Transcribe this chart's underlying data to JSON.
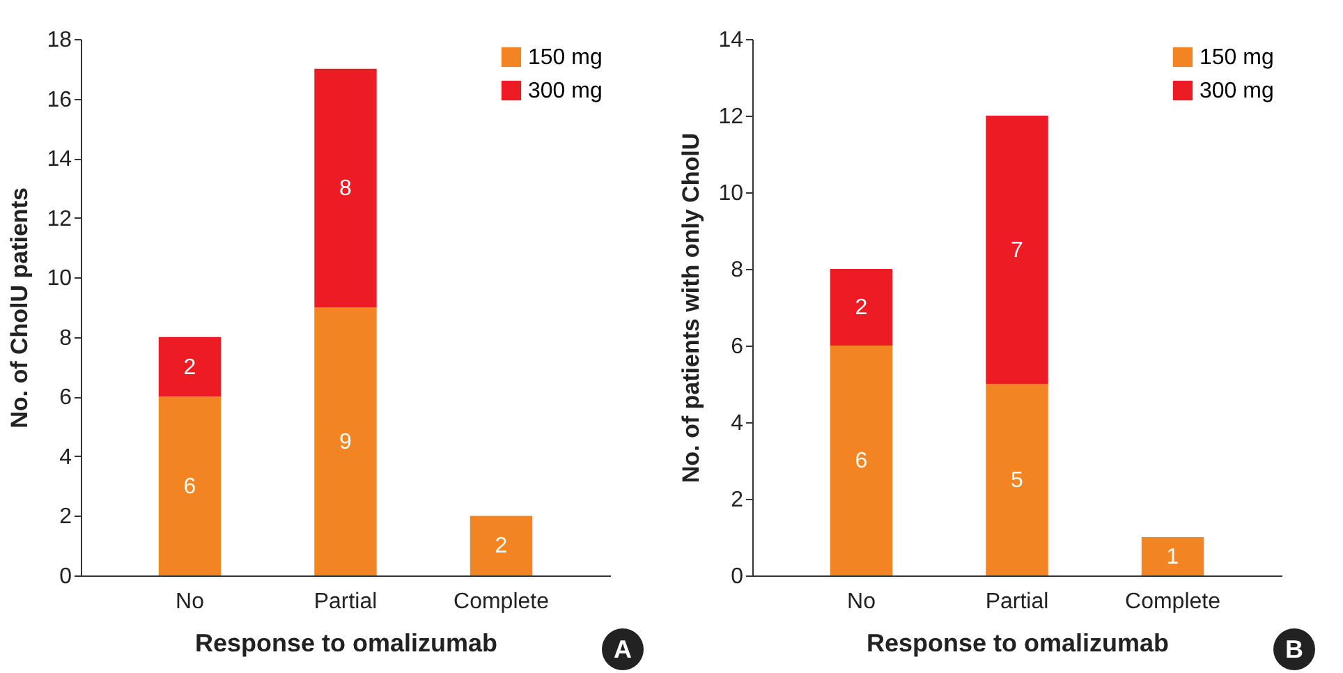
{
  "chart_data": [
    {
      "type": "bar",
      "stacked": true,
      "xlabel": "Response to omalizumab",
      "ylabel": "No. of CholU patients",
      "categories": [
        "No",
        "Partial",
        "Complete"
      ],
      "series": [
        {
          "name": "150 mg",
          "color": "#f28522",
          "values": [
            6,
            9,
            2
          ]
        },
        {
          "name": "300 mg",
          "color": "#ed1c24",
          "values": [
            2,
            8,
            null
          ]
        }
      ],
      "ylim": [
        0,
        18
      ],
      "yticks": [
        0,
        2,
        4,
        6,
        8,
        10,
        12,
        14,
        16,
        18
      ],
      "data_labels": true,
      "legend": "top right",
      "grid": false,
      "annotations": [
        "A"
      ]
    },
    {
      "type": "bar",
      "stacked": true,
      "xlabel": "Response to omalizumab",
      "ylabel": "No. of patients with only CholU",
      "categories": [
        "No",
        "Partial",
        "Complete"
      ],
      "series": [
        {
          "name": "150 mg",
          "color": "#f28522",
          "values": [
            6,
            5,
            1
          ]
        },
        {
          "name": "300 mg",
          "color": "#ed1c24",
          "values": [
            2,
            7,
            null
          ]
        }
      ],
      "ylim": [
        0,
        14
      ],
      "yticks": [
        0,
        2,
        4,
        6,
        8,
        10,
        12,
        14
      ],
      "data_labels": true,
      "legend": "top right",
      "grid": false,
      "annotations": [
        "B"
      ]
    }
  ]
}
